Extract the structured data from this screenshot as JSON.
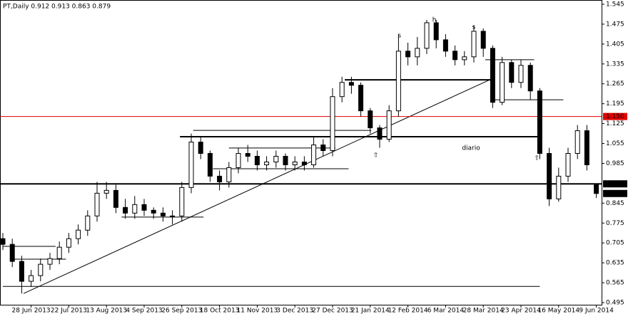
{
  "chart_data": {
    "type": "candlestick",
    "title": "PT,Daily  0.912 0.913 0.863 0.879",
    "categories": [
      null,
      null,
      null,
      "28 Jun 2013",
      null,
      null,
      null,
      "22 Jul 2013",
      null,
      null,
      null,
      "13 Aug 2013",
      null,
      null,
      null,
      "4 Sep 2013",
      null,
      null,
      null,
      "26 Sep 2013",
      null,
      null,
      null,
      "18 Oct 2013",
      null,
      null,
      null,
      "11 Nov 2013",
      null,
      null,
      null,
      "3 Dec 2013",
      null,
      null,
      null,
      "27 Dec 2013",
      null,
      null,
      null,
      "21 Jan 2014",
      null,
      null,
      null,
      "12 Feb 2014",
      null,
      null,
      null,
      "6 Mar 2014",
      null,
      null,
      null,
      "28 Mar 2014",
      null,
      null,
      null,
      "23 Apr 2014",
      null,
      null,
      null,
      "16 May 2014",
      null,
      null,
      null,
      "9 Jun 2014"
    ],
    "open": [
      0.72,
      0.7,
      0.64,
      0.57,
      0.59,
      0.63,
      0.65,
      0.69,
      0.72,
      0.75,
      0.8,
      0.88,
      0.89,
      0.83,
      0.81,
      0.84,
      0.82,
      0.81,
      0.8,
      0.8,
      0.9,
      1.06,
      1.02,
      0.94,
      0.92,
      0.97,
      1.02,
      1.01,
      0.98,
      0.99,
      1.01,
      0.98,
      0.99,
      0.98,
      1.05,
      1.03,
      1.22,
      1.27,
      1.26,
      1.17,
      1.11,
      1.07,
      1.17,
      1.38,
      1.36,
      1.39,
      1.48,
      1.42,
      1.38,
      1.35,
      1.36,
      1.45,
      1.39,
      1.2,
      1.34,
      1.27,
      1.33,
      1.24,
      1.02,
      0.86,
      0.94,
      1.02,
      1.1,
      0.912
    ],
    "high": [
      0.74,
      0.72,
      0.66,
      0.61,
      0.65,
      0.67,
      0.71,
      0.74,
      0.77,
      0.82,
      0.92,
      0.92,
      0.91,
      0.86,
      0.87,
      0.86,
      0.83,
      0.83,
      0.82,
      0.92,
      1.09,
      1.08,
      1.03,
      0.96,
      0.99,
      1.04,
      1.05,
      1.03,
      1.01,
      1.03,
      1.02,
      1.01,
      1.01,
      1.08,
      1.07,
      1.25,
      1.29,
      1.29,
      1.27,
      1.18,
      1.12,
      1.19,
      1.44,
      1.41,
      1.43,
      1.49,
      1.49,
      1.44,
      1.4,
      1.38,
      1.47,
      1.46,
      1.4,
      1.36,
      1.35,
      1.35,
      1.34,
      1.25,
      1.04,
      0.97,
      1.04,
      1.12,
      1.12,
      0.913
    ],
    "low": [
      0.68,
      0.62,
      0.527,
      0.55,
      0.57,
      0.61,
      0.63,
      0.67,
      0.7,
      0.73,
      0.78,
      0.86,
      0.81,
      0.79,
      0.79,
      0.8,
      0.79,
      0.78,
      0.77,
      0.78,
      0.88,
      1.0,
      0.92,
      0.89,
      0.9,
      0.95,
      0.99,
      0.96,
      0.96,
      0.97,
      0.96,
      0.96,
      0.96,
      0.97,
      1.01,
      1.01,
      1.2,
      1.23,
      1.15,
      1.09,
      1.04,
      1.06,
      1.15,
      1.33,
      1.33,
      1.37,
      1.39,
      1.36,
      1.33,
      1.33,
      1.34,
      1.36,
      1.18,
      1.19,
      1.25,
      1.25,
      1.21,
      1.0,
      0.835,
      0.85,
      0.92,
      1.0,
      0.96,
      0.863
    ],
    "close": [
      0.7,
      0.64,
      0.57,
      0.59,
      0.63,
      0.65,
      0.69,
      0.72,
      0.75,
      0.8,
      0.88,
      0.89,
      0.83,
      0.81,
      0.84,
      0.82,
      0.81,
      0.8,
      0.8,
      0.9,
      1.06,
      1.02,
      0.94,
      0.92,
      0.97,
      1.02,
      1.01,
      0.98,
      0.99,
      1.01,
      0.98,
      0.99,
      0.98,
      1.05,
      1.03,
      1.22,
      1.27,
      1.26,
      1.17,
      1.11,
      1.07,
      1.17,
      1.38,
      1.36,
      1.39,
      1.48,
      1.42,
      1.38,
      1.35,
      1.36,
      1.45,
      1.39,
      1.2,
      1.34,
      1.27,
      1.33,
      1.24,
      1.02,
      0.86,
      0.94,
      1.02,
      1.1,
      0.98,
      0.879
    ],
    "ylim": [
      0.495,
      1.545
    ],
    "yticks": [
      1.545,
      1.475,
      1.405,
      1.335,
      1.265,
      1.195,
      1.125,
      1.055,
      0.985,
      0.845,
      0.775,
      0.705,
      0.635,
      0.565,
      0.495
    ],
    "levels": [
      {
        "value": 1.15,
        "label": "1.150",
        "color": "#e00000",
        "line": true
      },
      {
        "value": 0.913,
        "label": "0.913",
        "color": "#000000",
        "line": true
      },
      {
        "value": 0.879,
        "label": "0.879",
        "color": "#000000",
        "line": false
      }
    ],
    "trendlines": [
      {
        "x": [
          2.2,
          52
        ],
        "y": [
          0.527,
          1.284
        ],
        "width": 1
      },
      {
        "x": [
          18.8,
          57
        ],
        "y": [
          1.079,
          1.079
        ],
        "width": 2
      },
      {
        "x": [
          36.3,
          52
        ],
        "y": [
          1.279,
          1.279
        ],
        "width": 2
      },
      {
        "x": [
          0,
          57
        ],
        "y": [
          0.552,
          0.552
        ],
        "width": 1
      },
      {
        "x": [
          20.2,
          39.1
        ],
        "y": [
          1.101,
          1.101
        ],
        "width": 1
      },
      {
        "x": [
          22.3,
          36.7
        ],
        "y": [
          0.966,
          0.966
        ],
        "width": 1
      },
      {
        "x": [
          24,
          35.3
        ],
        "y": [
          1.039,
          1.039
        ],
        "width": 1
      },
      {
        "x": [
          52,
          59.5
        ],
        "y": [
          1.209,
          1.209
        ],
        "width": 1
      },
      {
        "x": [
          51.2,
          56.4
        ],
        "y": [
          1.35,
          1.35
        ],
        "width": 1
      },
      {
        "x": [
          12.6,
          21.3
        ],
        "y": [
          0.796,
          0.796
        ],
        "width": 1
      },
      {
        "x": [
          0,
          5.6
        ],
        "y": [
          0.693,
          0.693
        ],
        "width": 1
      },
      {
        "x": [
          1.2,
          6.7
        ],
        "y": [
          0.648,
          0.648
        ],
        "width": 1
      }
    ],
    "annotations": [
      {
        "text": "diario",
        "x": 49.7,
        "y": 1.039,
        "color": "#e00000",
        "size": 13
      },
      {
        "text": "s",
        "x": 42.1,
        "y": 1.435,
        "color": "#e00000",
        "size": 11
      },
      {
        "text": "h",
        "x": 45.8,
        "y": 1.49,
        "color": "#e00000",
        "size": 11
      },
      {
        "text": "s",
        "x": 50,
        "y": 1.465,
        "color": "#e00000",
        "size": 11
      },
      {
        "text": "⇧",
        "x": 39.6,
        "y": 1.014,
        "color": "#e00000",
        "size": 13
      },
      {
        "text": "⇧",
        "x": 56.7,
        "y": 1.004,
        "color": "#e00000",
        "size": 13
      }
    ]
  }
}
